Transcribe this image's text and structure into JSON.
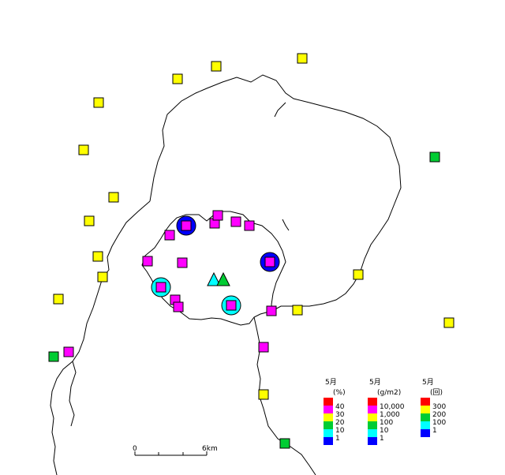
{
  "colors": {
    "red": "#ff0000",
    "magenta": "#ff00ff",
    "yellow": "#ffff00",
    "green": "#00cc33",
    "cyan": "#00ffff",
    "blue": "#0000ff",
    "coast": "#000000"
  },
  "map": {
    "scale_bar": {
      "start_label": "0",
      "end_label": "6km"
    },
    "stations": [
      {
        "color": "yellow"
      },
      {
        "color": "yellow"
      },
      {
        "color": "yellow"
      },
      {
        "color": "yellow"
      },
      {
        "color": "yellow"
      },
      {
        "color": "yellow"
      },
      {
        "color": "yellow"
      },
      {
        "color": "yellow"
      },
      {
        "color": "yellow"
      },
      {
        "color": "yellow"
      },
      {
        "color": "yellow"
      },
      {
        "color": "yellow"
      },
      {
        "color": "yellow"
      },
      {
        "color": "yellow"
      },
      {
        "color": "green"
      },
      {
        "color": "green"
      },
      {
        "color": "green"
      },
      {
        "color": "magenta"
      },
      {
        "color": "magenta"
      },
      {
        "color": "magenta"
      },
      {
        "color": "magenta"
      },
      {
        "color": "magenta"
      },
      {
        "color": "magenta"
      },
      {
        "color": "magenta"
      },
      {
        "color": "magenta"
      },
      {
        "color": "magenta"
      },
      {
        "color": "magenta"
      },
      {
        "color": "magenta"
      },
      {
        "color": "magenta"
      },
      {
        "color": "magenta"
      },
      {
        "color": "magenta"
      },
      {
        "color": "magenta"
      },
      {
        "color": "magenta"
      },
      {
        "color": "magenta"
      }
    ],
    "frequency_circles": [
      {
        "color": "blue"
      },
      {
        "color": "blue"
      },
      {
        "color": "cyan"
      },
      {
        "color": "cyan"
      }
    ],
    "craters": [
      {
        "color": "cyan"
      },
      {
        "color": "green"
      }
    ]
  },
  "legends": [
    {
      "month": "5月",
      "unit": "(%)",
      "items": [
        {
          "color": "red",
          "label": "40"
        },
        {
          "color": "magenta",
          "label": "30"
        },
        {
          "color": "yellow",
          "label": "20"
        },
        {
          "color": "green",
          "label": "10"
        },
        {
          "color": "cyan",
          "label": "1"
        },
        {
          "color": "blue",
          "label": ""
        }
      ]
    },
    {
      "month": "5月",
      "unit": "(g/m2)",
      "items": [
        {
          "color": "red",
          "label": "10,000"
        },
        {
          "color": "magenta",
          "label": "1,000"
        },
        {
          "color": "yellow",
          "label": "100"
        },
        {
          "color": "green",
          "label": "10"
        },
        {
          "color": "cyan",
          "label": "1"
        },
        {
          "color": "blue",
          "label": ""
        }
      ]
    },
    {
      "month": "5月",
      "unit": "(回)",
      "items": [
        {
          "color": "red",
          "label": "300"
        },
        {
          "color": "yellow",
          "label": "200"
        },
        {
          "color": "green",
          "label": "100"
        },
        {
          "color": "cyan",
          "label": "1"
        },
        {
          "color": "blue",
          "label": ""
        }
      ]
    }
  ]
}
